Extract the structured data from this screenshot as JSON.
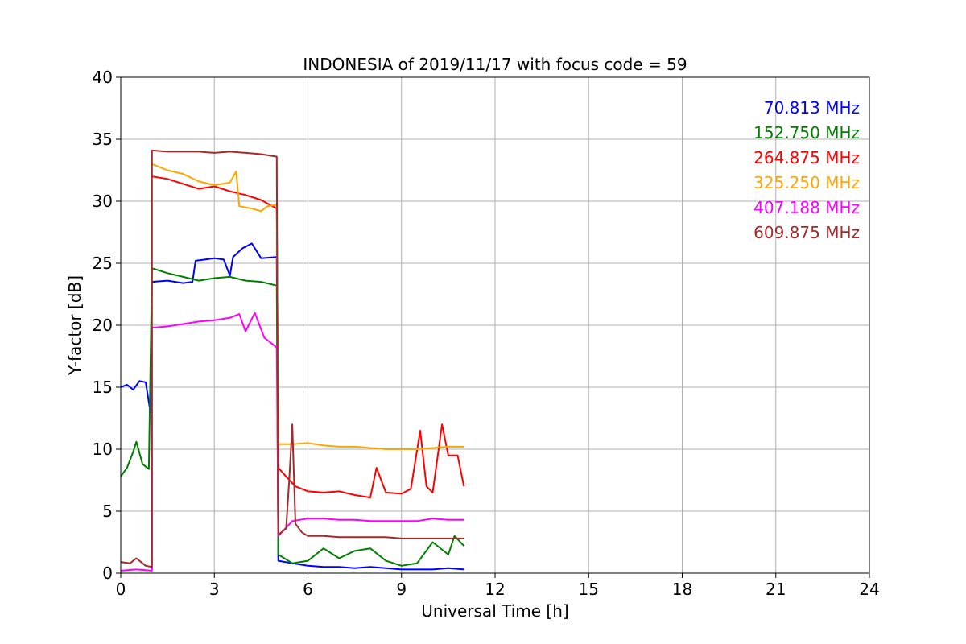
{
  "chart_data": {
    "type": "line",
    "title": "INDONESIA of 2019/11/17 with focus code = 59",
    "xlabel": "Universal Time [h]",
    "ylabel": "Y-factor [dB]",
    "xlim": [
      0,
      24
    ],
    "ylim": [
      0,
      40
    ],
    "xticks": [
      0,
      3,
      6,
      9,
      12,
      15,
      18,
      21,
      24
    ],
    "yticks": [
      0,
      5,
      10,
      15,
      20,
      25,
      30,
      35,
      40
    ],
    "grid": true,
    "legend_position": "top-right",
    "series": [
      {
        "name": "70.813 MHz",
        "color": "#0000ff",
        "points": [
          [
            0,
            15.0
          ],
          [
            0.2,
            15.2
          ],
          [
            0.4,
            14.8
          ],
          [
            0.6,
            15.5
          ],
          [
            0.8,
            15.4
          ],
          [
            0.95,
            13.0
          ],
          [
            1.0,
            23.5
          ],
          [
            1.5,
            23.6
          ],
          [
            2.0,
            23.4
          ],
          [
            2.3,
            23.5
          ],
          [
            2.4,
            25.2
          ],
          [
            2.7,
            25.3
          ],
          [
            3.0,
            25.4
          ],
          [
            3.3,
            25.3
          ],
          [
            3.5,
            24.0
          ],
          [
            3.6,
            25.5
          ],
          [
            3.9,
            26.2
          ],
          [
            4.2,
            26.6
          ],
          [
            4.5,
            25.4
          ],
          [
            5.0,
            25.5
          ],
          [
            5.05,
            1.0
          ],
          [
            5.5,
            0.8
          ],
          [
            6.0,
            0.6
          ],
          [
            6.5,
            0.5
          ],
          [
            7.0,
            0.5
          ],
          [
            7.5,
            0.4
          ],
          [
            8.0,
            0.5
          ],
          [
            8.5,
            0.4
          ],
          [
            9.0,
            0.3
          ],
          [
            9.5,
            0.3
          ],
          [
            10.0,
            0.3
          ],
          [
            10.5,
            0.4
          ],
          [
            11.0,
            0.3
          ]
        ]
      },
      {
        "name": "152.750 MHz",
        "color": "#008000",
        "points": [
          [
            0,
            7.8
          ],
          [
            0.2,
            8.5
          ],
          [
            0.4,
            9.8
          ],
          [
            0.5,
            10.6
          ],
          [
            0.7,
            8.8
          ],
          [
            0.9,
            8.4
          ],
          [
            1.0,
            24.6
          ],
          [
            1.5,
            24.2
          ],
          [
            2.0,
            23.9
          ],
          [
            2.5,
            23.6
          ],
          [
            3.0,
            23.8
          ],
          [
            3.5,
            23.9
          ],
          [
            4.0,
            23.6
          ],
          [
            4.5,
            23.5
          ],
          [
            5.0,
            23.2
          ],
          [
            5.05,
            1.5
          ],
          [
            5.5,
            0.8
          ],
          [
            6.0,
            1.0
          ],
          [
            6.5,
            2.0
          ],
          [
            7.0,
            1.2
          ],
          [
            7.5,
            1.8
          ],
          [
            8.0,
            2.0
          ],
          [
            8.5,
            1.0
          ],
          [
            9.0,
            0.6
          ],
          [
            9.5,
            0.8
          ],
          [
            10.0,
            2.5
          ],
          [
            10.5,
            1.5
          ],
          [
            10.7,
            3.0
          ],
          [
            11.0,
            2.2
          ]
        ]
      },
      {
        "name": "264.875 MHz",
        "color": "#ff0000",
        "points": [
          [
            1.0,
            32.0
          ],
          [
            1.5,
            31.8
          ],
          [
            2.0,
            31.4
          ],
          [
            2.5,
            31.0
          ],
          [
            3.0,
            31.2
          ],
          [
            3.5,
            30.8
          ],
          [
            4.0,
            30.5
          ],
          [
            4.5,
            30.1
          ],
          [
            5.0,
            29.4
          ],
          [
            5.05,
            8.5
          ],
          [
            5.3,
            7.8
          ],
          [
            5.6,
            7.0
          ],
          [
            6.0,
            6.6
          ],
          [
            6.5,
            6.5
          ],
          [
            7.0,
            6.6
          ],
          [
            7.5,
            6.3
          ],
          [
            8.0,
            6.1
          ],
          [
            8.2,
            8.5
          ],
          [
            8.5,
            6.5
          ],
          [
            9.0,
            6.4
          ],
          [
            9.3,
            6.8
          ],
          [
            9.6,
            11.5
          ],
          [
            9.8,
            7.0
          ],
          [
            10.0,
            6.5
          ],
          [
            10.3,
            12.0
          ],
          [
            10.5,
            9.5
          ],
          [
            10.8,
            9.5
          ],
          [
            11.0,
            7.0
          ]
        ]
      },
      {
        "name": "325.250 MHz",
        "color": "#ffa500",
        "points": [
          [
            1.0,
            33.0
          ],
          [
            1.5,
            32.5
          ],
          [
            2.0,
            32.2
          ],
          [
            2.5,
            31.6
          ],
          [
            3.0,
            31.3
          ],
          [
            3.5,
            31.5
          ],
          [
            3.7,
            32.4
          ],
          [
            3.8,
            29.6
          ],
          [
            4.2,
            29.4
          ],
          [
            4.5,
            29.2
          ],
          [
            4.7,
            29.6
          ],
          [
            5.0,
            29.7
          ],
          [
            5.05,
            10.4
          ],
          [
            5.5,
            10.4
          ],
          [
            6.0,
            10.5
          ],
          [
            6.5,
            10.3
          ],
          [
            7.0,
            10.2
          ],
          [
            7.5,
            10.2
          ],
          [
            8.0,
            10.1
          ],
          [
            8.5,
            10.0
          ],
          [
            9.0,
            10.0
          ],
          [
            9.5,
            10.0
          ],
          [
            10.0,
            10.1
          ],
          [
            10.5,
            10.2
          ],
          [
            11.0,
            10.2
          ]
        ]
      },
      {
        "name": "407.188 MHz",
        "color": "#ff00ff",
        "points": [
          [
            0,
            0.2
          ],
          [
            0.5,
            0.3
          ],
          [
            1.0,
            0.2
          ],
          [
            1.0,
            19.8
          ],
          [
            1.5,
            19.9
          ],
          [
            2.0,
            20.1
          ],
          [
            2.5,
            20.3
          ],
          [
            3.0,
            20.4
          ],
          [
            3.5,
            20.6
          ],
          [
            3.8,
            20.9
          ],
          [
            4.0,
            19.5
          ],
          [
            4.3,
            21.0
          ],
          [
            4.6,
            19.0
          ],
          [
            5.0,
            18.2
          ],
          [
            5.05,
            3.0
          ],
          [
            5.5,
            4.2
          ],
          [
            6.0,
            4.4
          ],
          [
            6.5,
            4.4
          ],
          [
            7.0,
            4.3
          ],
          [
            7.5,
            4.3
          ],
          [
            8.0,
            4.2
          ],
          [
            8.5,
            4.2
          ],
          [
            9.0,
            4.2
          ],
          [
            9.5,
            4.2
          ],
          [
            10.0,
            4.4
          ],
          [
            10.5,
            4.3
          ],
          [
            11.0,
            4.3
          ]
        ]
      },
      {
        "name": "609.875 MHz",
        "color": "#a52a2a",
        "points": [
          [
            0,
            0.9
          ],
          [
            0.3,
            0.8
          ],
          [
            0.5,
            1.2
          ],
          [
            0.8,
            0.6
          ],
          [
            1.0,
            0.5
          ],
          [
            1.0,
            34.1
          ],
          [
            1.5,
            34.0
          ],
          [
            2.0,
            34.0
          ],
          [
            2.5,
            34.0
          ],
          [
            3.0,
            33.9
          ],
          [
            3.5,
            34.0
          ],
          [
            4.0,
            33.9
          ],
          [
            4.5,
            33.8
          ],
          [
            5.0,
            33.6
          ],
          [
            5.05,
            3.1
          ],
          [
            5.3,
            3.6
          ],
          [
            5.4,
            7.5
          ],
          [
            5.5,
            12.0
          ],
          [
            5.6,
            4.0
          ],
          [
            5.8,
            3.3
          ],
          [
            6.0,
            3.0
          ],
          [
            6.5,
            3.0
          ],
          [
            7.0,
            2.9
          ],
          [
            7.5,
            2.9
          ],
          [
            8.0,
            2.9
          ],
          [
            8.5,
            2.9
          ],
          [
            9.0,
            2.8
          ],
          [
            9.5,
            2.8
          ],
          [
            10.0,
            2.8
          ],
          [
            10.5,
            2.8
          ],
          [
            11.0,
            2.8
          ]
        ]
      }
    ]
  }
}
